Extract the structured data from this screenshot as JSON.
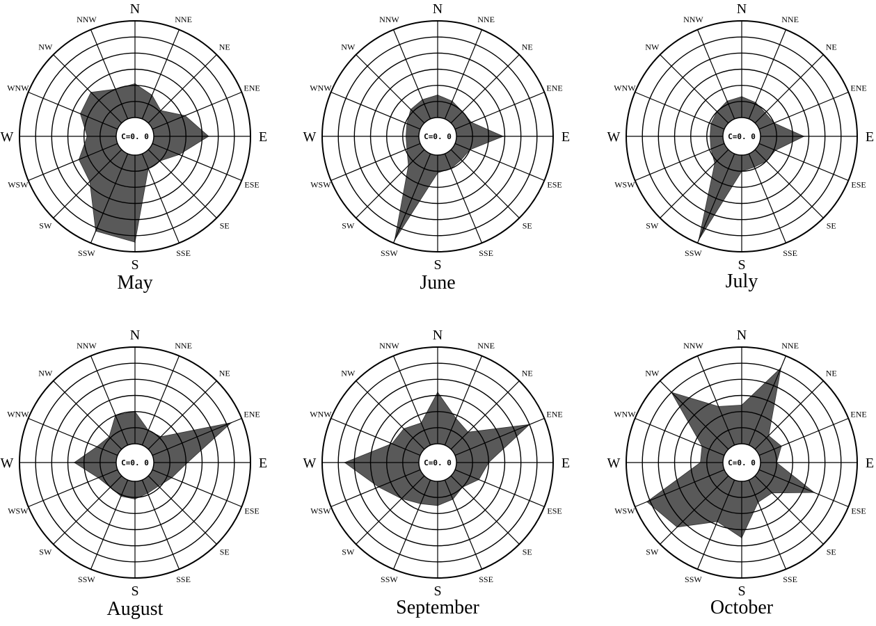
{
  "directions": [
    "N",
    "NNE",
    "NE",
    "ENE",
    "E",
    "ESE",
    "SE",
    "SSE",
    "S",
    "SSW",
    "SW",
    "WSW",
    "W",
    "WNW",
    "NW",
    "NNW"
  ],
  "chart_data": [
    {
      "type": "radar",
      "title": "May",
      "calm_label": "C=0. 0",
      "rmax": 6,
      "rings": 6,
      "values": [
        2.1,
        1.6,
        1.1,
        2.2,
        3.4,
        1.8,
        1.0,
        1.0,
        5.4,
        5.2,
        2.8,
        2.6,
        1.8,
        2.5,
        2.7,
        2.0
      ]
    },
    {
      "type": "radar",
      "title": "June",
      "calm_label": "C=0. 0",
      "rmax": 6,
      "rings": 6,
      "values": [
        1.4,
        1.2,
        1.0,
        1.1,
        2.9,
        1.0,
        0.9,
        1.0,
        1.1,
        5.8,
        1.4,
        0.9,
        0.8,
        0.9,
        1.2,
        1.3
      ]
    },
    {
      "type": "radar",
      "title": "July",
      "calm_label": "C=0. 0",
      "rmax": 6,
      "rings": 6,
      "values": [
        1.3,
        1.1,
        0.9,
        1.0,
        2.7,
        1.1,
        1.0,
        0.9,
        1.0,
        5.8,
        1.2,
        0.9,
        0.8,
        0.9,
        1.0,
        1.2
      ]
    },
    {
      "type": "radar",
      "title": "August",
      "calm_label": "C=0. 0",
      "rmax": 6,
      "rings": 6,
      "values": [
        2.0,
        1.0,
        1.1,
        5.3,
        2.1,
        1.3,
        0.9,
        0.9,
        1.1,
        1.1,
        1.0,
        1.3,
        2.6,
        1.4,
        1.1,
        2.0
      ]
    },
    {
      "type": "radar",
      "title": "September",
      "calm_label": "C=0. 0",
      "rmax": 6,
      "rings": 6,
      "values": [
        3.2,
        1.8,
        1.5,
        5.0,
        2.0,
        1.6,
        1.0,
        1.3,
        1.5,
        1.6,
        2.0,
        2.8,
        4.6,
        1.9,
        1.8,
        1.5
      ]
    },
    {
      "type": "radar",
      "title": "October",
      "calm_label": "C=0. 0",
      "rmax": 6,
      "rings": 6,
      "values": [
        2.4,
        5.2,
        1.2,
        1.5,
        1.0,
        3.7,
        1.5,
        1.5,
        3.5,
        2.8,
        4.5,
        5.2,
        1.4,
        1.5,
        5.0,
        2.6
      ]
    }
  ]
}
